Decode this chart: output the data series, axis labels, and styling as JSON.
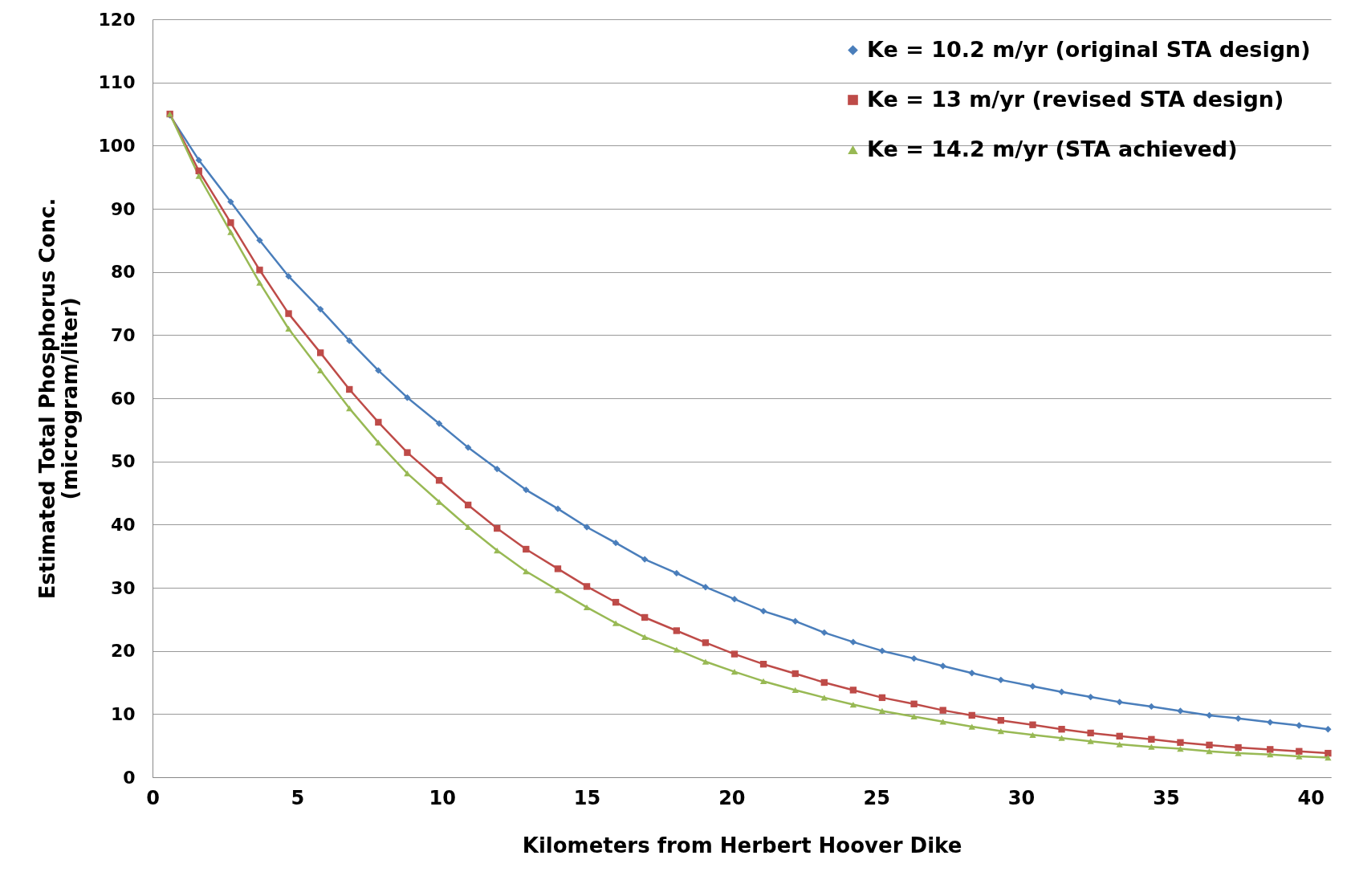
{
  "chart_data": {
    "type": "line",
    "xlabel": "Kilometers from Herbert Hoover Dike",
    "ylabel": "Estimated Total Phosphorus Conc.\n(microgram/liter)",
    "x": [
      0.6,
      1.6,
      2.7,
      3.7,
      4.7,
      5.8,
      6.8,
      7.8,
      8.8,
      9.9,
      10.9,
      11.9,
      12.9,
      14.0,
      15.0,
      16.0,
      17.0,
      18.1,
      19.1,
      20.1,
      21.1,
      22.2,
      23.2,
      24.2,
      25.2,
      26.3,
      27.3,
      28.3,
      29.3,
      30.4,
      31.4,
      32.4,
      33.4,
      34.5,
      35.5,
      36.5,
      37.5,
      38.6,
      39.6,
      40.6
    ],
    "series": [
      {
        "name": "Ke = 10.2 m/yr (original STA design)",
        "color": "#4a7ebb",
        "marker": "diamond",
        "values": [
          104.8,
          97.7,
          91.1,
          85.0,
          79.3,
          74.1,
          69.1,
          64.4,
          60.1,
          56.0,
          52.2,
          48.8,
          45.5,
          42.5,
          39.6,
          37.1,
          34.5,
          32.3,
          30.1,
          28.2,
          26.3,
          24.7,
          22.9,
          21.4,
          20.0,
          18.8,
          17.6,
          16.5,
          15.4,
          14.4,
          13.5,
          12.7,
          11.9,
          11.2,
          10.5,
          9.8,
          9.3,
          8.7,
          8.2,
          7.6
        ]
      },
      {
        "name": "Ke = 13 m/yr (revised STA design)",
        "color": "#be4b48",
        "marker": "square",
        "values": [
          105,
          96,
          87.8,
          80.3,
          73.4,
          67.2,
          61.4,
          56.2,
          51.4,
          47.0,
          43.1,
          39.4,
          36.1,
          33.0,
          30.2,
          27.7,
          25.3,
          23.2,
          21.3,
          19.5,
          17.9,
          16.4,
          15.0,
          13.8,
          12.6,
          11.6,
          10.6,
          9.8,
          9.0,
          8.3,
          7.6,
          7.0,
          6.5,
          6.0,
          5.5,
          5.1,
          4.7,
          4.4,
          4.1,
          3.8
        ]
      },
      {
        "name": "Ke = 14.2 m/yr (STA achieved)",
        "color": "#98b954",
        "marker": "triangle",
        "values": [
          105,
          95.2,
          86.3,
          78.3,
          71.0,
          64.4,
          58.4,
          53.0,
          48.1,
          43.6,
          39.6,
          35.9,
          32.6,
          29.6,
          26.9,
          24.4,
          22.2,
          20.2,
          18.3,
          16.7,
          15.2,
          13.8,
          12.6,
          11.5,
          10.5,
          9.6,
          8.8,
          8.0,
          7.3,
          6.7,
          6.2,
          5.7,
          5.2,
          4.8,
          4.5,
          4.1,
          3.8,
          3.6,
          3.3,
          3.1
        ]
      }
    ],
    "xlim": [
      0,
      40.7
    ],
    "xticks": [
      0,
      5,
      10,
      15,
      20,
      25,
      30,
      35,
      40
    ],
    "ylim": [
      0,
      120
    ],
    "yticks": [
      0,
      10,
      20,
      30,
      40,
      50,
      60,
      70,
      80,
      90,
      100,
      110,
      120
    ],
    "grid": "y",
    "legend": "top right"
  }
}
